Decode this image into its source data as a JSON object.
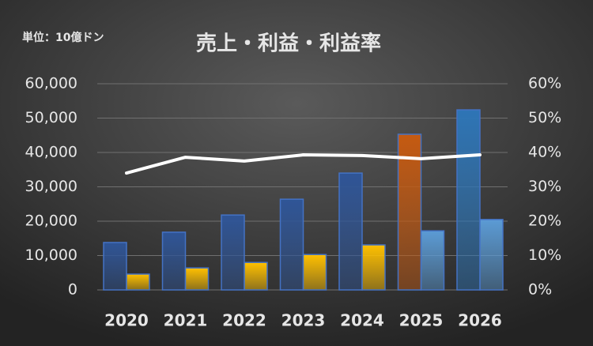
{
  "chart_data": {
    "type": "bar_line",
    "title": "売上・利益・利益率",
    "unit_note": "単位：10億ドン",
    "categories": [
      "2020",
      "2021",
      "2022",
      "2023",
      "2024",
      "2025",
      "2026"
    ],
    "series": [
      {
        "type": "bar",
        "colors": [
          "#2f5597",
          "#2f5597",
          "#2f5597",
          "#2f5597",
          "#2f5597",
          "#c55a11",
          "#2e75b6"
        ],
        "values": [
          13800,
          16800,
          21800,
          26400,
          34000,
          45300,
          52400
        ]
      },
      {
        "type": "bar",
        "colors": [
          "#ffc000",
          "#ffc000",
          "#ffc000",
          "#ffc000",
          "#ffc000",
          "#5b9bd5",
          "#5b9bd5"
        ],
        "values": [
          4600,
          6400,
          8000,
          10300,
          13100,
          17200,
          20500
        ]
      },
      {
        "type": "line",
        "axis": "y2",
        "color": "#ffffff",
        "values": [
          34,
          38.6,
          37.5,
          39.3,
          39.1,
          38.2,
          39.3
        ]
      }
    ],
    "ylim": [
      0,
      60000
    ],
    "yticks": [
      0,
      {
        "value": 10000,
        "label": "10,000"
      },
      {
        "value": 20000,
        "label": "20,000"
      },
      {
        "value": 30000,
        "label": "30,000"
      },
      {
        "value": 40000,
        "label": "40,000"
      },
      {
        "value": 50000,
        "label": "50,000"
      },
      {
        "value": 60000,
        "label": "60,000"
      }
    ],
    "y2lim": [
      0,
      60
    ],
    "y2ticks": [
      {
        "value": 0,
        "label": "0%"
      },
      {
        "value": 10,
        "label": "10%"
      },
      {
        "value": 20,
        "label": "20%"
      },
      {
        "value": 30,
        "label": "30%"
      },
      {
        "value": 40,
        "label": "40%"
      },
      {
        "value": 50,
        "label": "50%"
      },
      {
        "value": 60,
        "label": "60%"
      }
    ],
    "grid": true
  }
}
